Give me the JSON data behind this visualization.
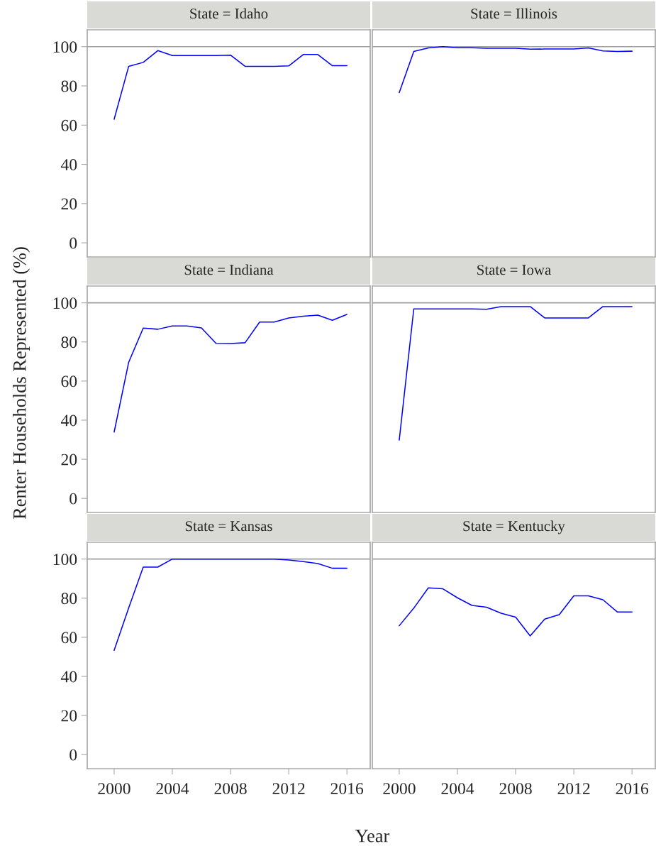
{
  "chart_data": [
    {
      "type": "line",
      "title": "State = Idaho",
      "ylabel": "Renter Households Represented (%)",
      "x": [
        2000,
        2001,
        2002,
        2003,
        2004,
        2005,
        2006,
        2007,
        2008,
        2009,
        2010,
        2011,
        2012,
        2013,
        2014,
        2015,
        2016
      ],
      "series": [
        {
          "color": "#0000ff",
          "values": [
            63,
            90,
            92,
            98,
            95.5,
            95.5,
            95.5,
            95.5,
            95.7,
            90,
            90,
            90,
            90.2,
            96,
            96,
            90.3,
            90.3
          ]
        }
      ],
      "xlim": [
        1998.15,
        2017.6
      ],
      "ylim": [
        -7.2,
        108.6
      ],
      "xticks": [
        2000,
        2004,
        2008,
        2012,
        2016
      ],
      "yticks": [
        0,
        20,
        40,
        60,
        80,
        100
      ],
      "ref_lines": [
        {
          "axis": "y",
          "value": 100,
          "color": "#a0a0a0"
        }
      ],
      "tick_labels": "y"
    },
    {
      "type": "line",
      "title": "State = Illinois",
      "x": [
        2000,
        2001,
        2002,
        2003,
        2004,
        2005,
        2006,
        2007,
        2008,
        2009,
        2010,
        2011,
        2012,
        2013,
        2014,
        2015,
        2016
      ],
      "series": [
        {
          "color": "#0000ff",
          "values": [
            76.6,
            97.6,
            99.4,
            100,
            99.5,
            99.5,
            99.2,
            99.2,
            99.2,
            98.7,
            98.8,
            98.8,
            98.8,
            99.4,
            97.8,
            97.6,
            97.7
          ]
        }
      ],
      "xlim": [
        1998.15,
        2017.6
      ],
      "ylim": [
        -7.2,
        108.6
      ],
      "xticks": [
        2000,
        2004,
        2008,
        2012,
        2016
      ],
      "yticks": [
        0,
        20,
        40,
        60,
        80,
        100
      ],
      "ref_lines": [
        {
          "axis": "y",
          "value": 100,
          "color": "#a0a0a0"
        }
      ],
      "tick_labels": false
    },
    {
      "type": "line",
      "title": "State = Indiana",
      "x": [
        2000,
        2001,
        2002,
        2003,
        2004,
        2005,
        2006,
        2007,
        2008,
        2009,
        2010,
        2011,
        2012,
        2013,
        2014,
        2015,
        2016
      ],
      "series": [
        {
          "color": "#0000ff",
          "values": [
            33.9,
            69.6,
            87.1,
            86.5,
            88.2,
            88.2,
            87.2,
            79.3,
            79.2,
            79.6,
            90.2,
            90.2,
            92.3,
            93.2,
            93.7,
            91.1,
            94.1
          ]
        }
      ],
      "xlim": [
        1998.15,
        2017.6
      ],
      "ylim": [
        -7.2,
        108.6
      ],
      "xticks": [
        2000,
        2004,
        2008,
        2012,
        2016
      ],
      "yticks": [
        0,
        20,
        40,
        60,
        80,
        100
      ],
      "ref_lines": [
        {
          "axis": "y",
          "value": 100,
          "color": "#a0a0a0"
        }
      ],
      "tick_labels": "y"
    },
    {
      "type": "line",
      "title": "State = Iowa",
      "x": [
        2000,
        2001,
        2002,
        2003,
        2004,
        2005,
        2006,
        2007,
        2008,
        2009,
        2010,
        2011,
        2012,
        2013,
        2014,
        2015,
        2016
      ],
      "series": [
        {
          "color": "#0000ff",
          "values": [
            29.8,
            96.9,
            96.9,
            96.9,
            96.9,
            96.9,
            96.7,
            98.1,
            98.1,
            98.1,
            92.3,
            92.3,
            92.3,
            92.3,
            98.1,
            98.1,
            98.1
          ]
        }
      ],
      "xlim": [
        1998.15,
        2017.6
      ],
      "ylim": [
        -7.2,
        108.6
      ],
      "xticks": [
        2000,
        2004,
        2008,
        2012,
        2016
      ],
      "yticks": [
        0,
        20,
        40,
        60,
        80,
        100
      ],
      "ref_lines": [
        {
          "axis": "y",
          "value": 100,
          "color": "#a0a0a0"
        }
      ],
      "tick_labels": false
    },
    {
      "type": "line",
      "title": "State = Kansas",
      "xlabel": "Year",
      "x": [
        2000,
        2001,
        2002,
        2003,
        2004,
        2005,
        2006,
        2007,
        2008,
        2009,
        2010,
        2011,
        2012,
        2013,
        2014,
        2015,
        2016
      ],
      "series": [
        {
          "color": "#0000ff",
          "values": [
            53.3,
            75,
            95.9,
            95.9,
            100,
            100,
            100,
            100,
            100,
            100,
            100,
            100,
            99.5,
            98.7,
            97.7,
            95.3,
            95.3
          ]
        }
      ],
      "xlim": [
        1998.15,
        2017.6
      ],
      "ylim": [
        -7.2,
        108.6
      ],
      "xticks": [
        2000,
        2004,
        2008,
        2012,
        2016
      ],
      "yticks": [
        0,
        20,
        40,
        60,
        80,
        100
      ],
      "ref_lines": [
        {
          "axis": "y",
          "value": 100,
          "color": "#a0a0a0"
        }
      ]
    },
    {
      "type": "line",
      "title": "State = Kentucky",
      "x": [
        2000,
        2001,
        2002,
        2003,
        2004,
        2005,
        2006,
        2007,
        2008,
        2009,
        2010,
        2011,
        2012,
        2013,
        2014,
        2015,
        2016
      ],
      "series": [
        {
          "color": "#0000ff",
          "values": [
            65.9,
            74.9,
            85.3,
            84.8,
            80.2,
            76.3,
            75.4,
            72.3,
            70.3,
            60.7,
            69.3,
            71.6,
            81.2,
            81.2,
            79.2,
            72.9,
            72.9
          ]
        }
      ],
      "xlim": [
        1998.15,
        2017.6
      ],
      "ylim": [
        -7.2,
        108.6
      ],
      "xticks": [
        2000,
        2004,
        2008,
        2012,
        2016
      ],
      "yticks": [
        0,
        20,
        40,
        60,
        80,
        100
      ],
      "ref_lines": [
        {
          "axis": "y",
          "value": 100,
          "color": "#a0a0a0"
        }
      ],
      "tick_labels": "x"
    }
  ]
}
